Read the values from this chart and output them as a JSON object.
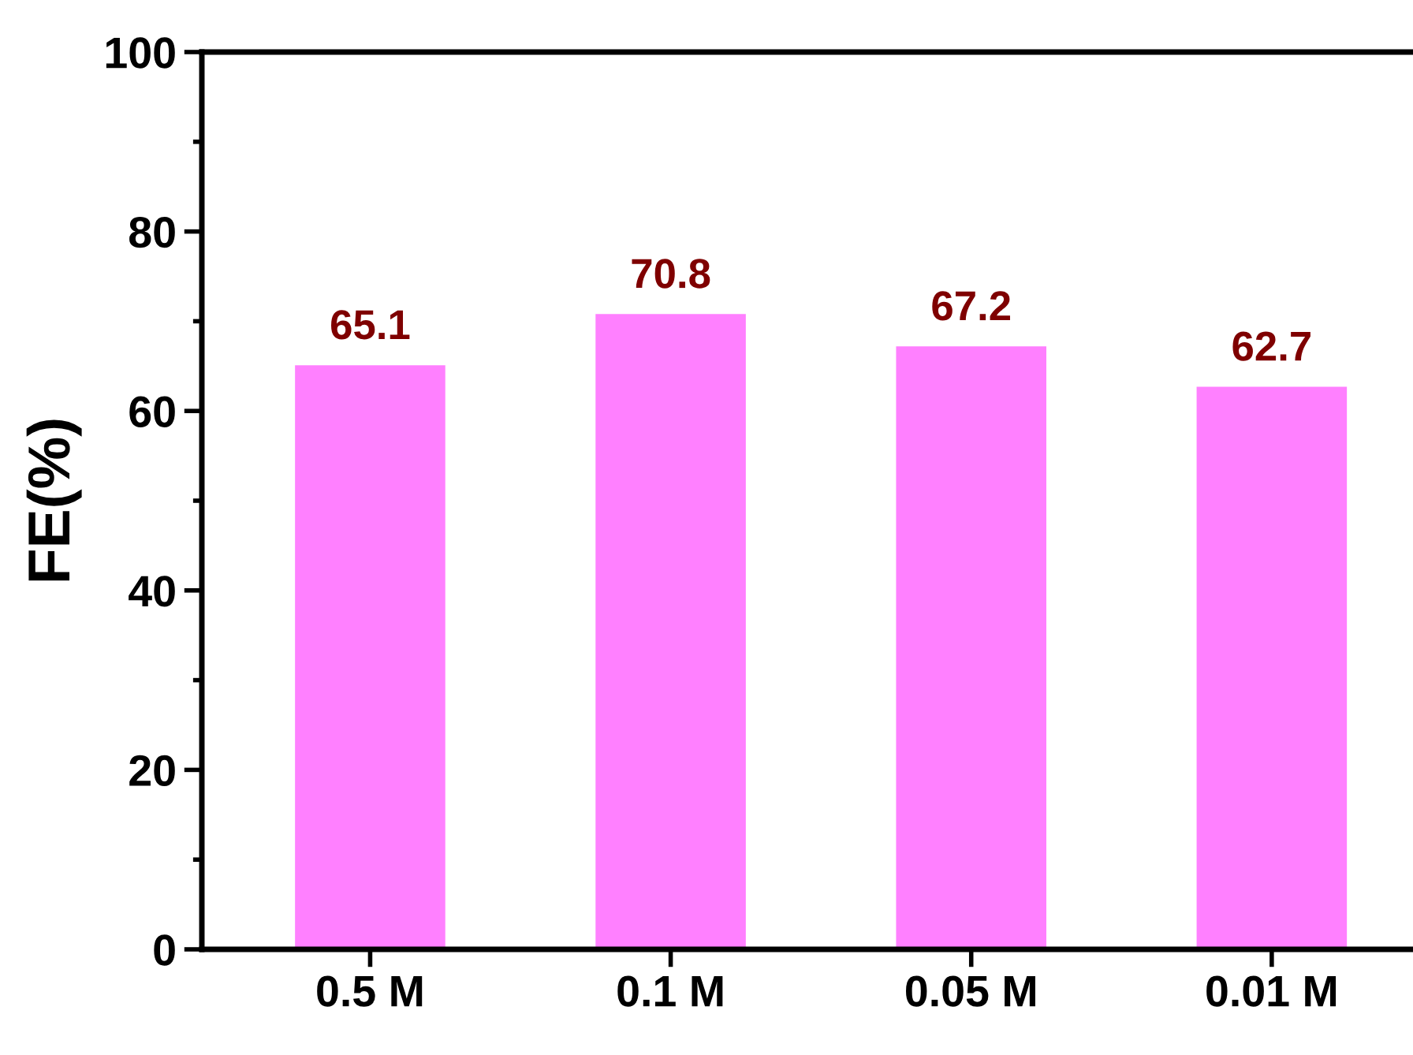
{
  "chart_data": {
    "type": "bar",
    "ylabel": "FE(%)",
    "categories": [
      "0.5 M",
      "0.1 M",
      "0.05 M",
      "0.01 M"
    ],
    "values": [
      65.1,
      70.8,
      67.2,
      62.7
    ],
    "color": "#ff80ff",
    "data_labels": true,
    "ylim": [
      0,
      100
    ],
    "yticks": [
      0,
      20,
      40,
      60,
      80,
      100
    ],
    "grid": false,
    "legend": false
  }
}
